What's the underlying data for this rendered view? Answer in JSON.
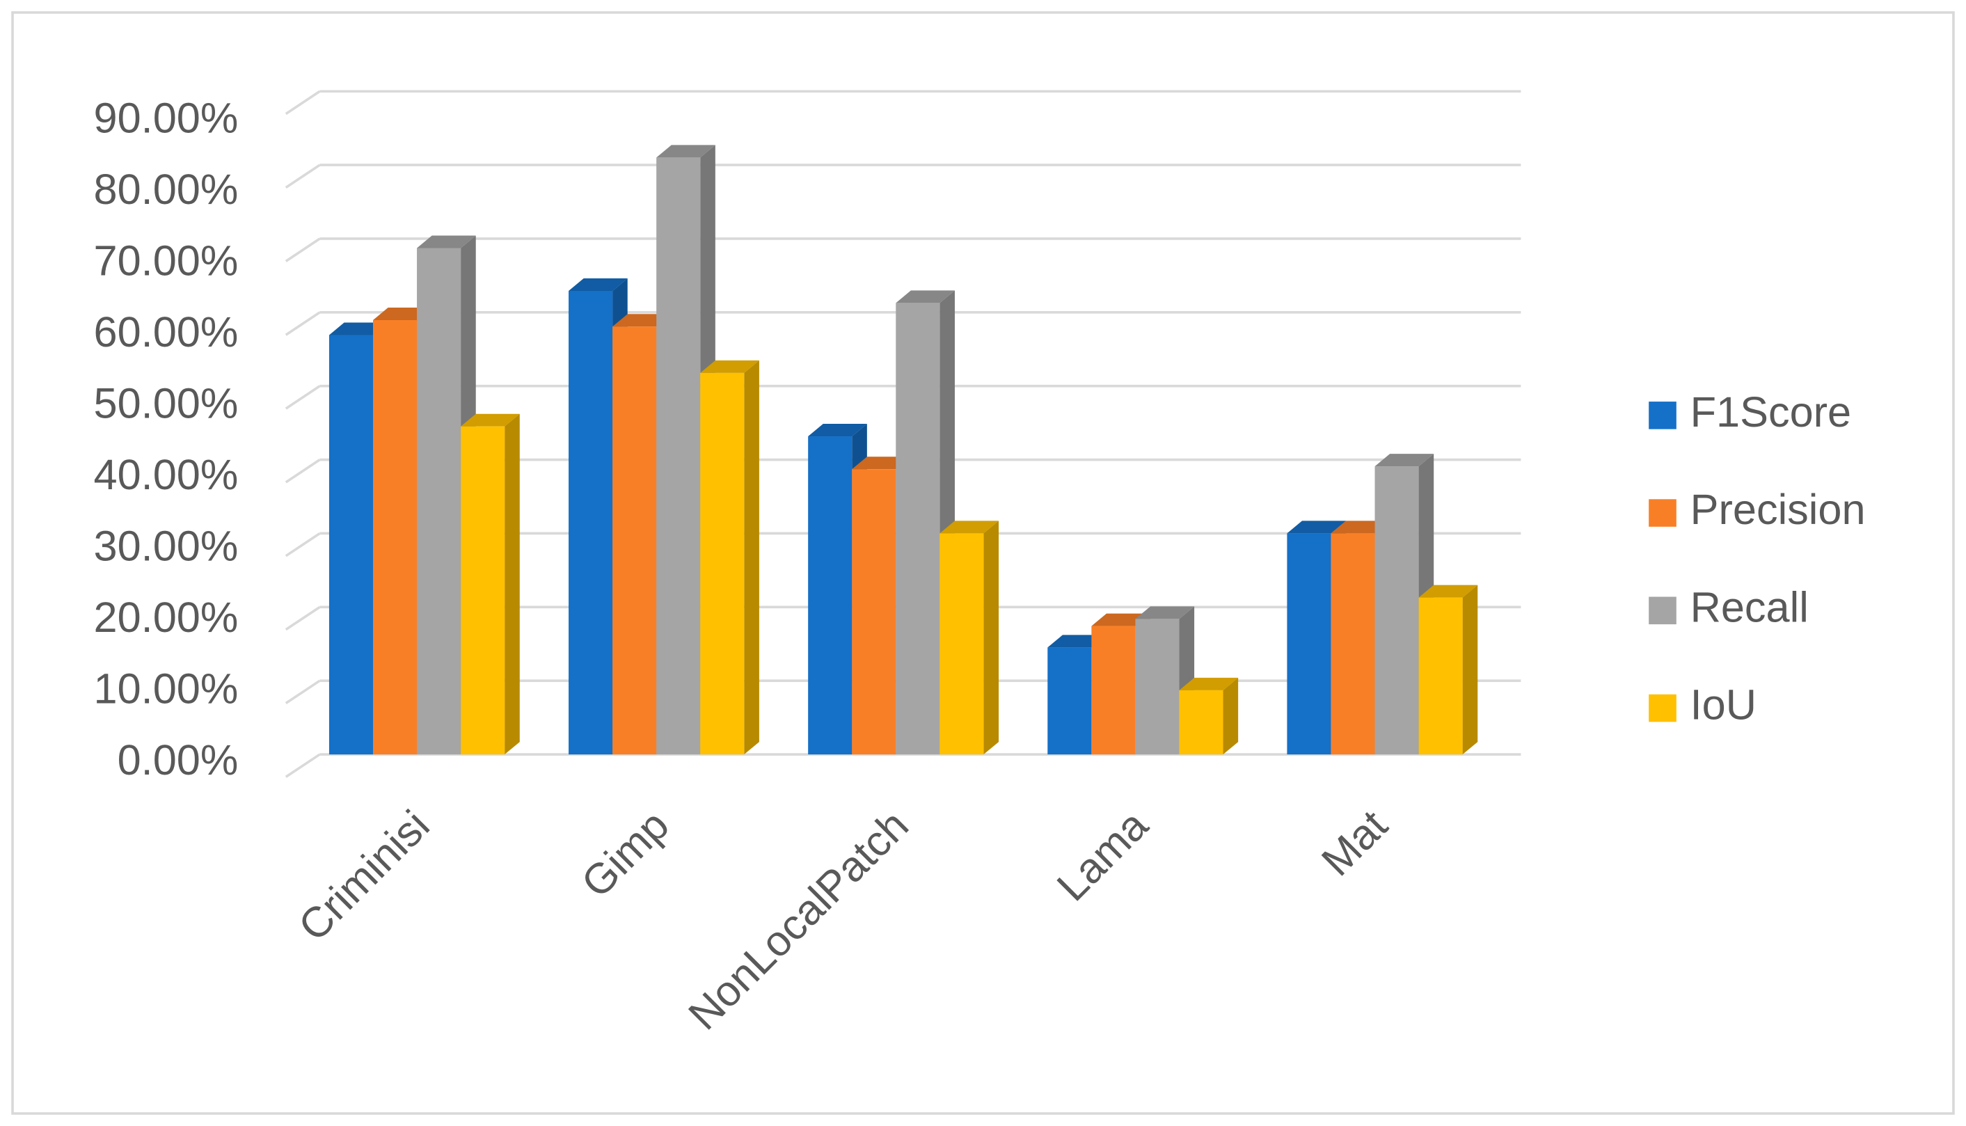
{
  "chart_data": {
    "type": "bar3d",
    "categories": [
      "Criminisi",
      "Gimp",
      "NonLocalPatch",
      "Lama",
      "Mat"
    ],
    "series": [
      {
        "name": "F1Score",
        "color": "#1570c8",
        "values": [
          58.8,
          65,
          44.6,
          15,
          31
        ]
      },
      {
        "name": "Precision",
        "color": "#f97f26",
        "values": [
          60.9,
          60,
          40,
          18,
          31
        ]
      },
      {
        "name": "Recall",
        "color": "#a5a5a5",
        "values": [
          71,
          83.7,
          63.3,
          19,
          40.4
        ]
      },
      {
        "name": "IoU",
        "color": "#ffc000",
        "values": [
          46,
          53.5,
          31,
          9,
          22
        ]
      }
    ],
    "ylim": [
      0,
      90
    ],
    "yticks": [
      {
        "value": 0,
        "label": "0.00%"
      },
      {
        "value": 10,
        "label": "10.00%"
      },
      {
        "value": 20,
        "label": "20.00%"
      },
      {
        "value": 30,
        "label": "30.00%"
      },
      {
        "value": 40,
        "label": "40.00%"
      },
      {
        "value": 50,
        "label": "50.00%"
      },
      {
        "value": 60,
        "label": "60.00%"
      },
      {
        "value": 70,
        "label": "70.00%"
      },
      {
        "value": 80,
        "label": "80.00%"
      },
      {
        "value": 90,
        "label": "90.00%"
      }
    ],
    "grid": true,
    "legend": "right"
  }
}
